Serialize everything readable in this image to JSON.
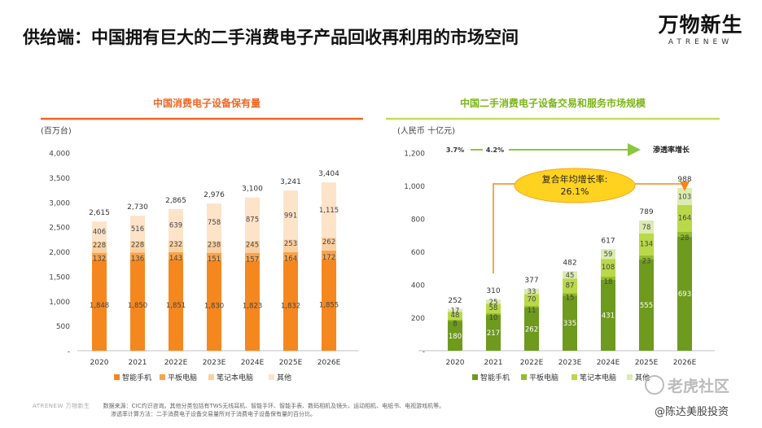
{
  "title": "供给端：中国拥有巨大的二手消费电子产品回收再利用的市场空间",
  "logo": {
    "cn": "万物新生",
    "en": "ATRENEW"
  },
  "chart_data": [
    {
      "type": "bar",
      "stacked": true,
      "title": "中国消费电子设备保有量",
      "unit_label": "(百万台)",
      "categories": [
        "2020",
        "2021",
        "2022E",
        "2023E",
        "2024E",
        "2025E",
        "2026E"
      ],
      "ylim": [
        0,
        4000
      ],
      "yticks": [
        "-",
        "500",
        "1,000",
        "1,500",
        "2,000",
        "2,500",
        "3,000",
        "3,500",
        "4,000"
      ],
      "series": [
        {
          "name": "智能手机",
          "color": "#f5871f",
          "values": [
            1848,
            1850,
            1851,
            1830,
            1823,
            1832,
            1855
          ]
        },
        {
          "name": "平板电脑",
          "color": "#f7a34c",
          "values": [
            132,
            136,
            143,
            151,
            157,
            164,
            172
          ]
        },
        {
          "name": "笔记本电脑",
          "color": "#fbd0a1",
          "values": [
            228,
            228,
            232,
            238,
            245,
            253,
            262
          ]
        },
        {
          "name": "其他",
          "color": "#fde3c8",
          "values": [
            406,
            516,
            639,
            758,
            875,
            991,
            1115
          ]
        }
      ],
      "totals": [
        "2,615",
        "2,730",
        "2,865",
        "2,976",
        "3,100",
        "3,241",
        "3,404"
      ],
      "legend": "bottom"
    },
    {
      "type": "bar",
      "stacked": true,
      "title": "中国二手消费电子设备交易和服务市场规模",
      "unit_label": "(人民币 十亿元)",
      "categories": [
        "2020",
        "2021",
        "2022E",
        "2023E",
        "2024E",
        "2025E",
        "2026E"
      ],
      "ylim": [
        0,
        1200
      ],
      "yticks": [
        "-",
        "200",
        "400",
        "600",
        "800",
        "1,000",
        "1,200"
      ],
      "series": [
        {
          "name": "智能手机",
          "color": "#6e9a1e",
          "values": [
            180,
            217,
            262,
            335,
            431,
            555,
            693
          ]
        },
        {
          "name": "平板电脑",
          "color": "#93bd2a",
          "values": [
            8,
            10,
            11,
            15,
            18,
            23,
            28
          ]
        },
        {
          "name": "笔记本电脑",
          "color": "#b9d84a",
          "values": [
            48,
            58,
            70,
            87,
            108,
            134,
            164
          ]
        },
        {
          "name": "其他",
          "color": "#dcebb0",
          "values": [
            17,
            25,
            33,
            45,
            59,
            78,
            103
          ]
        }
      ],
      "totals": [
        "252",
        "310",
        "377",
        "482",
        "617",
        "789",
        "988"
      ],
      "penetration": {
        "values": [
          "3.7%",
          "4.2%"
        ],
        "label": "渗透率增长"
      },
      "cagr_label": "复合年均增长率:",
      "cagr_value": "26.1%",
      "legend": "bottom"
    }
  ],
  "footer": {
    "brand": "ATRENEW 万物新生",
    "source": "数据来源：CIC灼识咨询。其他分类包括有TWS无线耳机、智能手环、智能手表、数码相机及镜头、运动相机、电纸书、电视游戏机等。",
    "note": "渗透率计算方法：二手消费电子设备交易量所对于消费电子设备保有量的百分比。"
  },
  "watermarks": {
    "site": "老虎社区",
    "author": "@陈达美股投资"
  }
}
